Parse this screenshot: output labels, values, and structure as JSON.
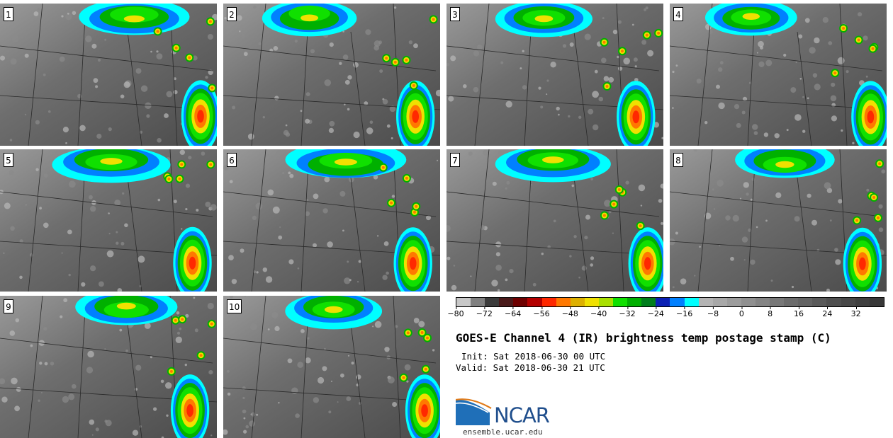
{
  "panels": [
    {
      "label": "1"
    },
    {
      "label": "2"
    },
    {
      "label": "3"
    },
    {
      "label": "4"
    },
    {
      "label": "5"
    },
    {
      "label": "6"
    },
    {
      "label": "7"
    },
    {
      "label": "8"
    },
    {
      "label": "9"
    },
    {
      "label": "10"
    }
  ],
  "colorbar": {
    "range": [
      -80,
      40
    ],
    "ticks": [
      "−80",
      "−72",
      "−64",
      "−56",
      "−48",
      "−40",
      "−32",
      "−24",
      "−16",
      "−8",
      "0",
      "8",
      "16",
      "24",
      "32"
    ],
    "colors": [
      "#c8c8c8",
      "#808080",
      "#3c3c3c",
      "#4a1a1a",
      "#6e0000",
      "#b40000",
      "#ff2800",
      "#ff7800",
      "#ddb000",
      "#f0e000",
      "#a8e000",
      "#10e000",
      "#00b000",
      "#007e1c",
      "#0a20b4",
      "#0080ff",
      "#00ffff",
      "#b4b4b4",
      "#a8a8a8",
      "#9c9c9c",
      "#909090",
      "#848484",
      "#787878",
      "#6c6c6c",
      "#646464",
      "#5a5a5a",
      "#505050",
      "#484848",
      "#404040",
      "#383838"
    ]
  },
  "title": "GOES-E Channel 4 (IR) brightness temp postage stamp (C)",
  "init": "Init: Sat 2018-06-30 00 UTC",
  "valid": "Valid: Sat 2018-06-30 21 UTC",
  "logo": {
    "text": "NCAR",
    "site": "ensemble.ucar.edu"
  }
}
